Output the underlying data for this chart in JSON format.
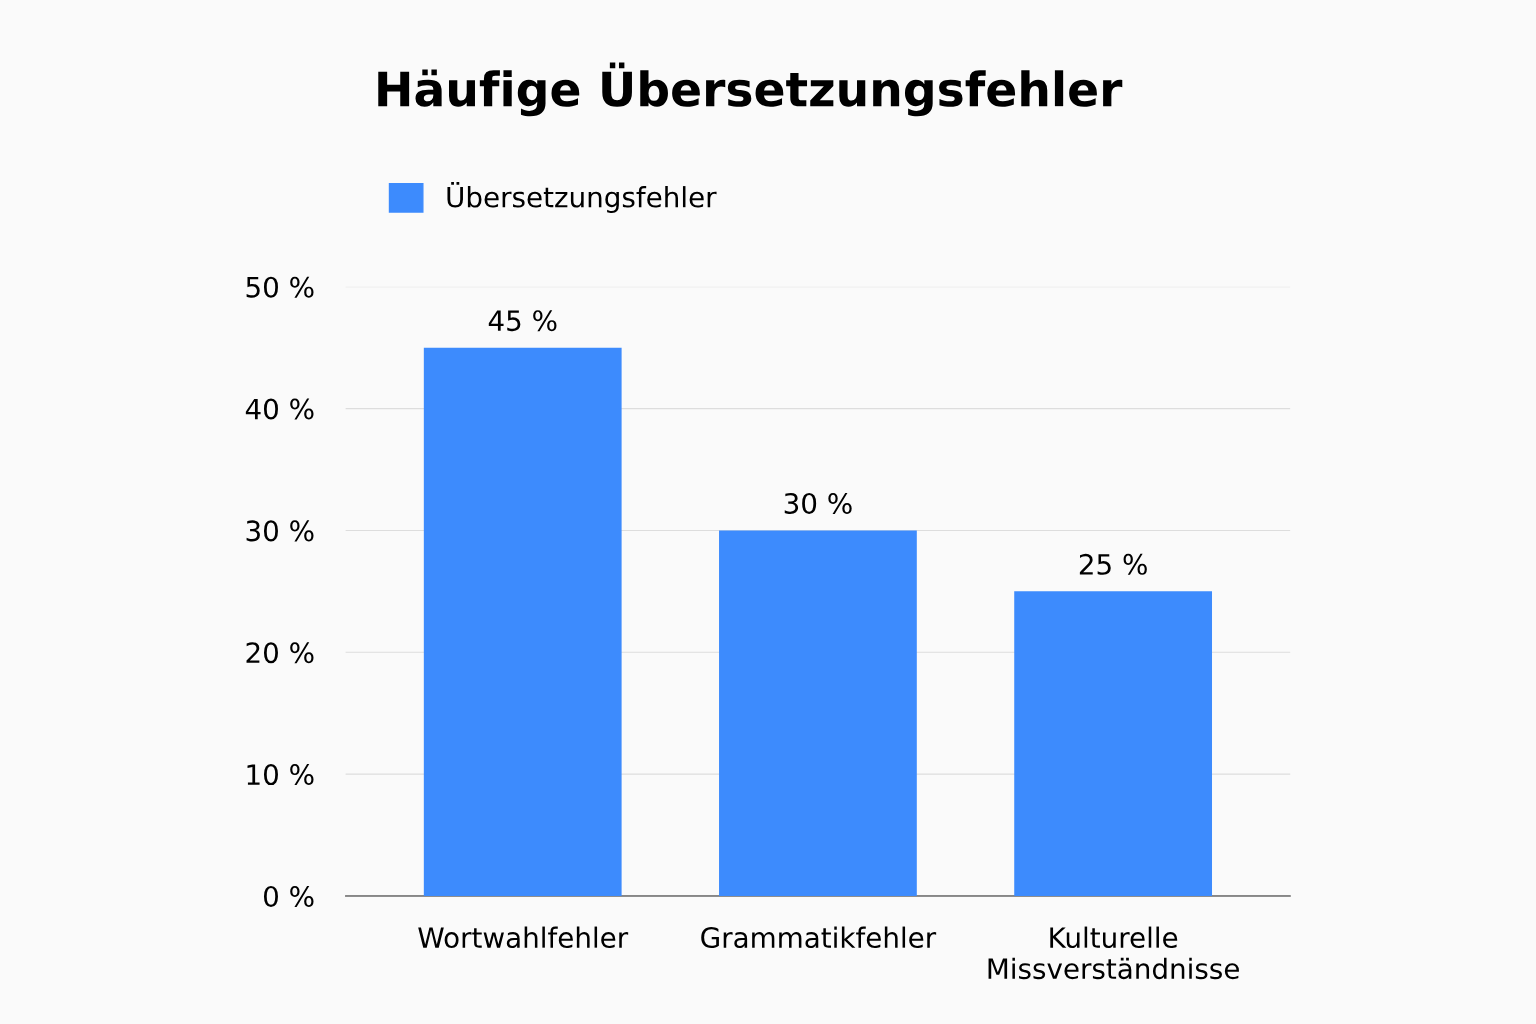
{
  "chart_data": {
    "type": "bar",
    "title": "Häufige Übersetzungsfehler",
    "categories": [
      "Wortwahlfehler",
      "Grammatikfehler",
      "Kulturelle\nMissverständnisse"
    ],
    "series": [
      {
        "name": "Übersetzungsfehler",
        "color": "#3d8bfd",
        "values": [
          45,
          30,
          25
        ]
      }
    ],
    "value_labels": [
      "45 %",
      "30 %",
      "25 %"
    ],
    "ylim": [
      0,
      50
    ],
    "yticks": [
      {
        "value": 0,
        "label": "0 %"
      },
      {
        "value": 10,
        "label": "10 %"
      },
      {
        "value": 20,
        "label": "20 %"
      },
      {
        "value": 30,
        "label": "30 %"
      },
      {
        "value": 40,
        "label": "40 %"
      },
      {
        "value": 50,
        "label": "50 %"
      }
    ],
    "grid": "y",
    "legend": "top left"
  }
}
